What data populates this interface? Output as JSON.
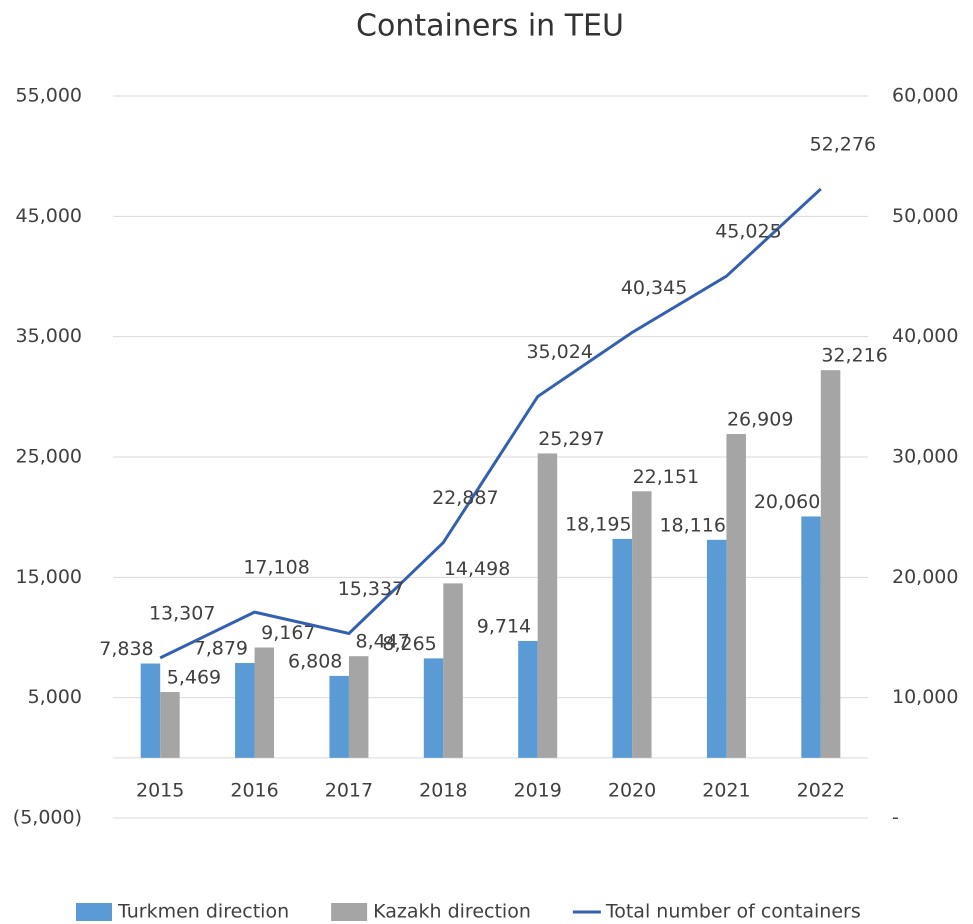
{
  "chart_data": {
    "type": "bar_line",
    "title": "Containers in TEU",
    "categories": [
      "2015",
      "2016",
      "2017",
      "2018",
      "2019",
      "2020",
      "2021",
      "2022"
    ],
    "series": [
      {
        "name": "Turkmen direction",
        "color": "#5b9bd5",
        "type": "bar",
        "values": [
          7838,
          7879,
          6808,
          8265,
          9714,
          18195,
          18116,
          20060
        ],
        "value_labels": [
          "7,838",
          "7,879",
          "6,808",
          "8,265",
          "9,714",
          "18,195",
          "18,116",
          "20,060"
        ]
      },
      {
        "name": "Kazakh direction",
        "color": "#a5a5a5",
        "type": "bar",
        "values": [
          5469,
          9167,
          8447,
          14498,
          25297,
          22151,
          26909,
          32216
        ],
        "value_labels": [
          "5,469",
          "9,167",
          "8,447",
          "14,498",
          "25,297",
          "22,151",
          "26,909",
          "32,216"
        ]
      },
      {
        "name": "Total number of containers",
        "color": "#3560b0",
        "type": "line",
        "axis": "y2",
        "values": [
          13307,
          17108,
          15337,
          22887,
          35024,
          40345,
          45025,
          52276
        ],
        "value_labels": [
          "13,307",
          "17,108",
          "15,337",
          "22,887",
          "35,024",
          "40,345",
          "45,025",
          "52,276"
        ]
      }
    ],
    "ylim": [
      -5000,
      55000
    ],
    "yticks": [
      {
        "value": -5000,
        "label": "(5,000)"
      },
      {
        "value": 5000,
        "label": "5,000"
      },
      {
        "value": 15000,
        "label": "15,000"
      },
      {
        "value": 25000,
        "label": "25,000"
      },
      {
        "value": 35000,
        "label": "35,000"
      },
      {
        "value": 45000,
        "label": "45,000"
      },
      {
        "value": 55000,
        "label": "55,000"
      }
    ],
    "y2lim": [
      0,
      60000
    ],
    "y2ticks": [
      {
        "value": 0,
        "label": "-"
      },
      {
        "value": 10000,
        "label": "10,000"
      },
      {
        "value": 20000,
        "label": "20,000"
      },
      {
        "value": 30000,
        "label": "30,000"
      },
      {
        "value": 40000,
        "label": "40,000"
      },
      {
        "value": 50000,
        "label": "50,000"
      },
      {
        "value": 60000,
        "label": "60,000"
      }
    ],
    "grid": true,
    "legend": "bottom"
  }
}
